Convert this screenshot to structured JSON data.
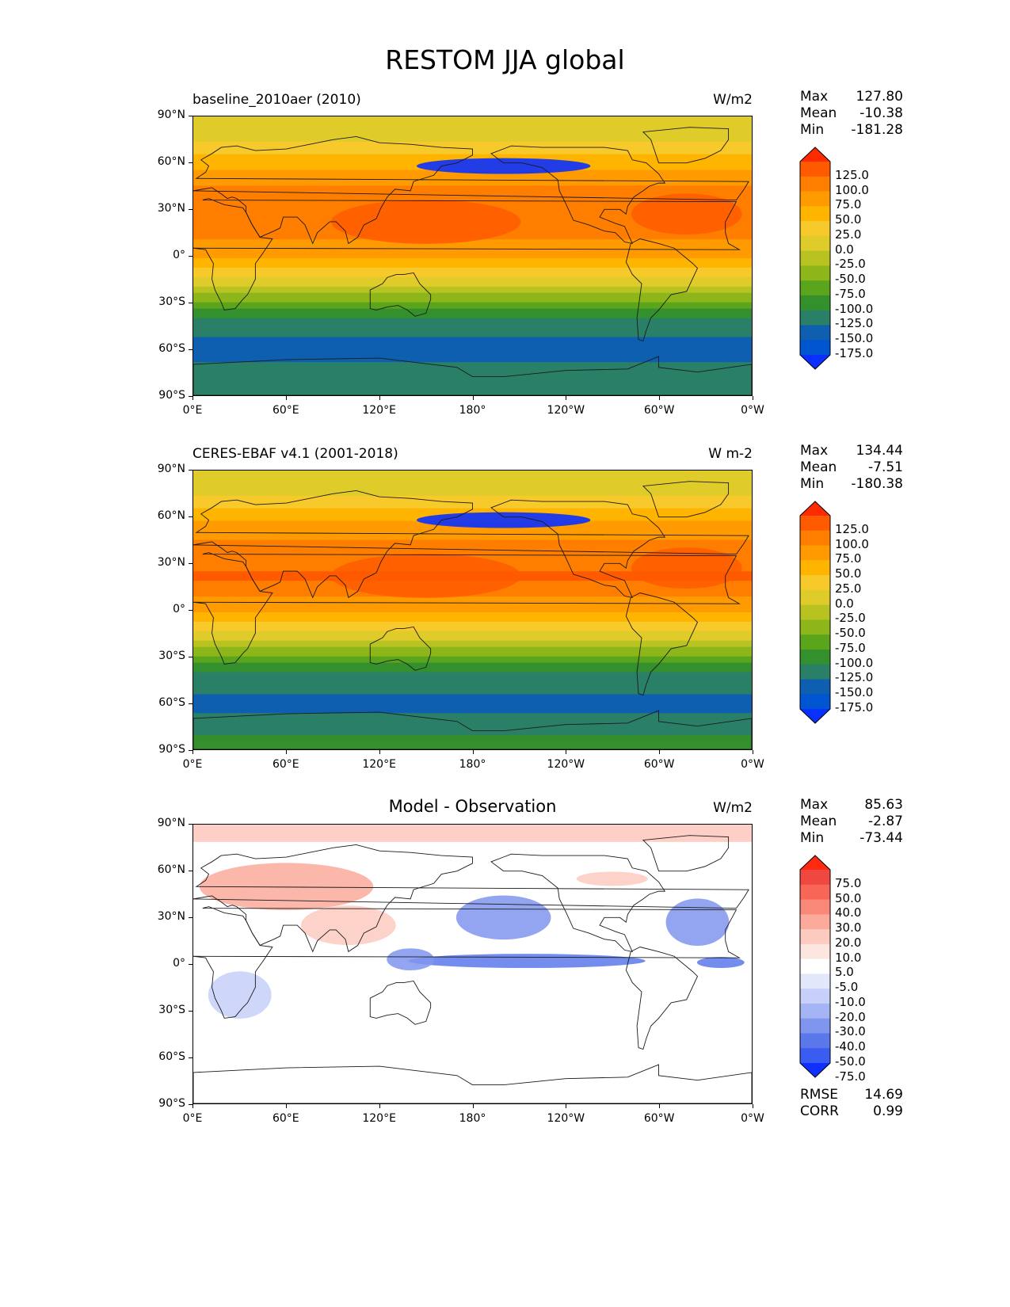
{
  "title": "RESTOM JJA global",
  "panels": [
    {
      "id": "model",
      "title": "baseline_2010aer (2010)",
      "units": "W/m2",
      "stats": [
        {
          "label": "Max",
          "value": "127.80"
        },
        {
          "label": "Mean",
          "value": "-10.38"
        },
        {
          "label": "Min",
          "value": "-181.28"
        }
      ],
      "colorbar": {
        "labels": [
          "125.0",
          "100.0",
          "75.0",
          "50.0",
          "25.0",
          "0.0",
          "-25.0",
          "-50.0",
          "-75.0",
          "-100.0",
          "-125.0",
          "-150.0",
          "-175.0"
        ],
        "colors": [
          "#fe2a00",
          "#ff5a00",
          "#ff7e00",
          "#ff9a00",
          "#ffb400",
          "#f7c92a",
          "#dfcb2a",
          "#b8c322",
          "#8db61a",
          "#5aa51c",
          "#34902c",
          "#2a8066",
          "#0e5fb0",
          "#0055d0",
          "#0a30ff"
        ]
      }
    },
    {
      "id": "obs",
      "title": "CERES-EBAF v4.1 (2001-2018)",
      "units": "W m-2",
      "stats": [
        {
          "label": "Max",
          "value": "134.44"
        },
        {
          "label": "Mean",
          "value": "-7.51"
        },
        {
          "label": "Min",
          "value": "-180.38"
        }
      ],
      "colorbar": {
        "labels": [
          "125.0",
          "100.0",
          "75.0",
          "50.0",
          "25.0",
          "0.0",
          "-25.0",
          "-50.0",
          "-75.0",
          "-100.0",
          "-125.0",
          "-150.0",
          "-175.0"
        ],
        "colors": [
          "#fe2a00",
          "#ff5a00",
          "#ff7e00",
          "#ff9a00",
          "#ffb400",
          "#f7c92a",
          "#dfcb2a",
          "#b8c322",
          "#8db61a",
          "#5aa51c",
          "#34902c",
          "#2a8066",
          "#0e5fb0",
          "#0055d0",
          "#0a30ff"
        ]
      }
    },
    {
      "id": "diff",
      "title": "Model - Observation",
      "units": "W/m2",
      "stats": [
        {
          "label": "Max",
          "value": "85.63"
        },
        {
          "label": "Mean",
          "value": "-2.87"
        },
        {
          "label": "Min",
          "value": "-73.44"
        }
      ],
      "colorbar": {
        "labels": [
          "75.0",
          "50.0",
          "40.0",
          "30.0",
          "20.0",
          "10.0",
          "5.0",
          "-5.0",
          "-10.0",
          "-20.0",
          "-30.0",
          "-40.0",
          "-50.0",
          "-75.0"
        ],
        "colors": [
          "#ff2a10",
          "#f04840",
          "#f86658",
          "#fa8878",
          "#fcaa9c",
          "#fdcac0",
          "#fee6e0",
          "#ffffff",
          "#e2e8fa",
          "#c6d0f8",
          "#a5b4f4",
          "#8095ee",
          "#5a78ea",
          "#3a5cf0",
          "#1030ff"
        ]
      },
      "metrics": [
        {
          "label": "RMSE",
          "value": "14.69"
        },
        {
          "label": "CORR",
          "value": "0.99"
        }
      ]
    }
  ],
  "axes": {
    "lat_ticks": [
      "90°N",
      "60°N",
      "30°N",
      "0°",
      "30°S",
      "60°S",
      "90°S"
    ],
    "lon_ticks": [
      "0°E",
      "60°E",
      "120°E",
      "180°",
      "120°W",
      "60°W",
      "0°W"
    ]
  },
  "chart_data": [
    {
      "type": "heatmap",
      "title": "baseline_2010aer (2010)",
      "units": "W/m2",
      "x": {
        "ticks": [
          "0°E",
          "60°E",
          "120°E",
          "180°",
          "120°W",
          "60°W",
          "0°W"
        ],
        "range": [
          0,
          360
        ]
      },
      "y": {
        "ticks": [
          "90°N",
          "60°N",
          "30°N",
          "0°",
          "30°S",
          "60°S",
          "90°S"
        ],
        "range": [
          -90,
          90
        ]
      },
      "levels": [
        -175,
        -150,
        -125,
        -100,
        -75,
        -50,
        -25,
        0,
        25,
        50,
        75,
        100,
        125
      ],
      "stats": {
        "max": 127.8,
        "mean": -10.38,
        "min": -181.28
      },
      "zonal_profile": {
        "lat": [
          80,
          60,
          40,
          20,
          0,
          -20,
          -40,
          -60,
          -80
        ],
        "value": [
          -15,
          40,
          85,
          95,
          55,
          -30,
          -125,
          -165,
          -130
        ]
      }
    },
    {
      "type": "heatmap",
      "title": "CERES-EBAF v4.1 (2001-2018)",
      "units": "W m-2",
      "x": {
        "ticks": [
          "0°E",
          "60°E",
          "120°E",
          "180°",
          "120°W",
          "60°W",
          "0°W"
        ],
        "range": [
          0,
          360
        ]
      },
      "y": {
        "ticks": [
          "90°N",
          "60°N",
          "30°N",
          "0°",
          "30°S",
          "60°S",
          "90°S"
        ],
        "range": [
          -90,
          90
        ]
      },
      "levels": [
        -175,
        -150,
        -125,
        -100,
        -75,
        -50,
        -25,
        0,
        25,
        50,
        75,
        100,
        125
      ],
      "stats": {
        "max": 134.44,
        "mean": -7.51,
        "min": -180.38
      },
      "zonal_profile": {
        "lat": [
          80,
          60,
          40,
          20,
          0,
          -20,
          -40,
          -60,
          -80
        ],
        "value": [
          -20,
          45,
          85,
          105,
          55,
          -30,
          -125,
          -160,
          -125
        ]
      }
    },
    {
      "type": "heatmap",
      "title": "Model - Observation",
      "units": "W/m2",
      "x": {
        "ticks": [
          "0°E",
          "60°E",
          "120°E",
          "180°",
          "120°W",
          "60°W",
          "0°W"
        ],
        "range": [
          0,
          360
        ]
      },
      "y": {
        "ticks": [
          "90°N",
          "60°N",
          "30°N",
          "0°",
          "30°S",
          "60°S",
          "90°S"
        ],
        "range": [
          -90,
          90
        ]
      },
      "levels": [
        -75,
        -50,
        -40,
        -30,
        -20,
        -10,
        -5,
        5,
        10,
        20,
        30,
        40,
        50,
        75
      ],
      "stats": {
        "max": 85.63,
        "mean": -2.87,
        "min": -73.44,
        "rmse": 14.69,
        "corr": 0.99
      }
    }
  ]
}
